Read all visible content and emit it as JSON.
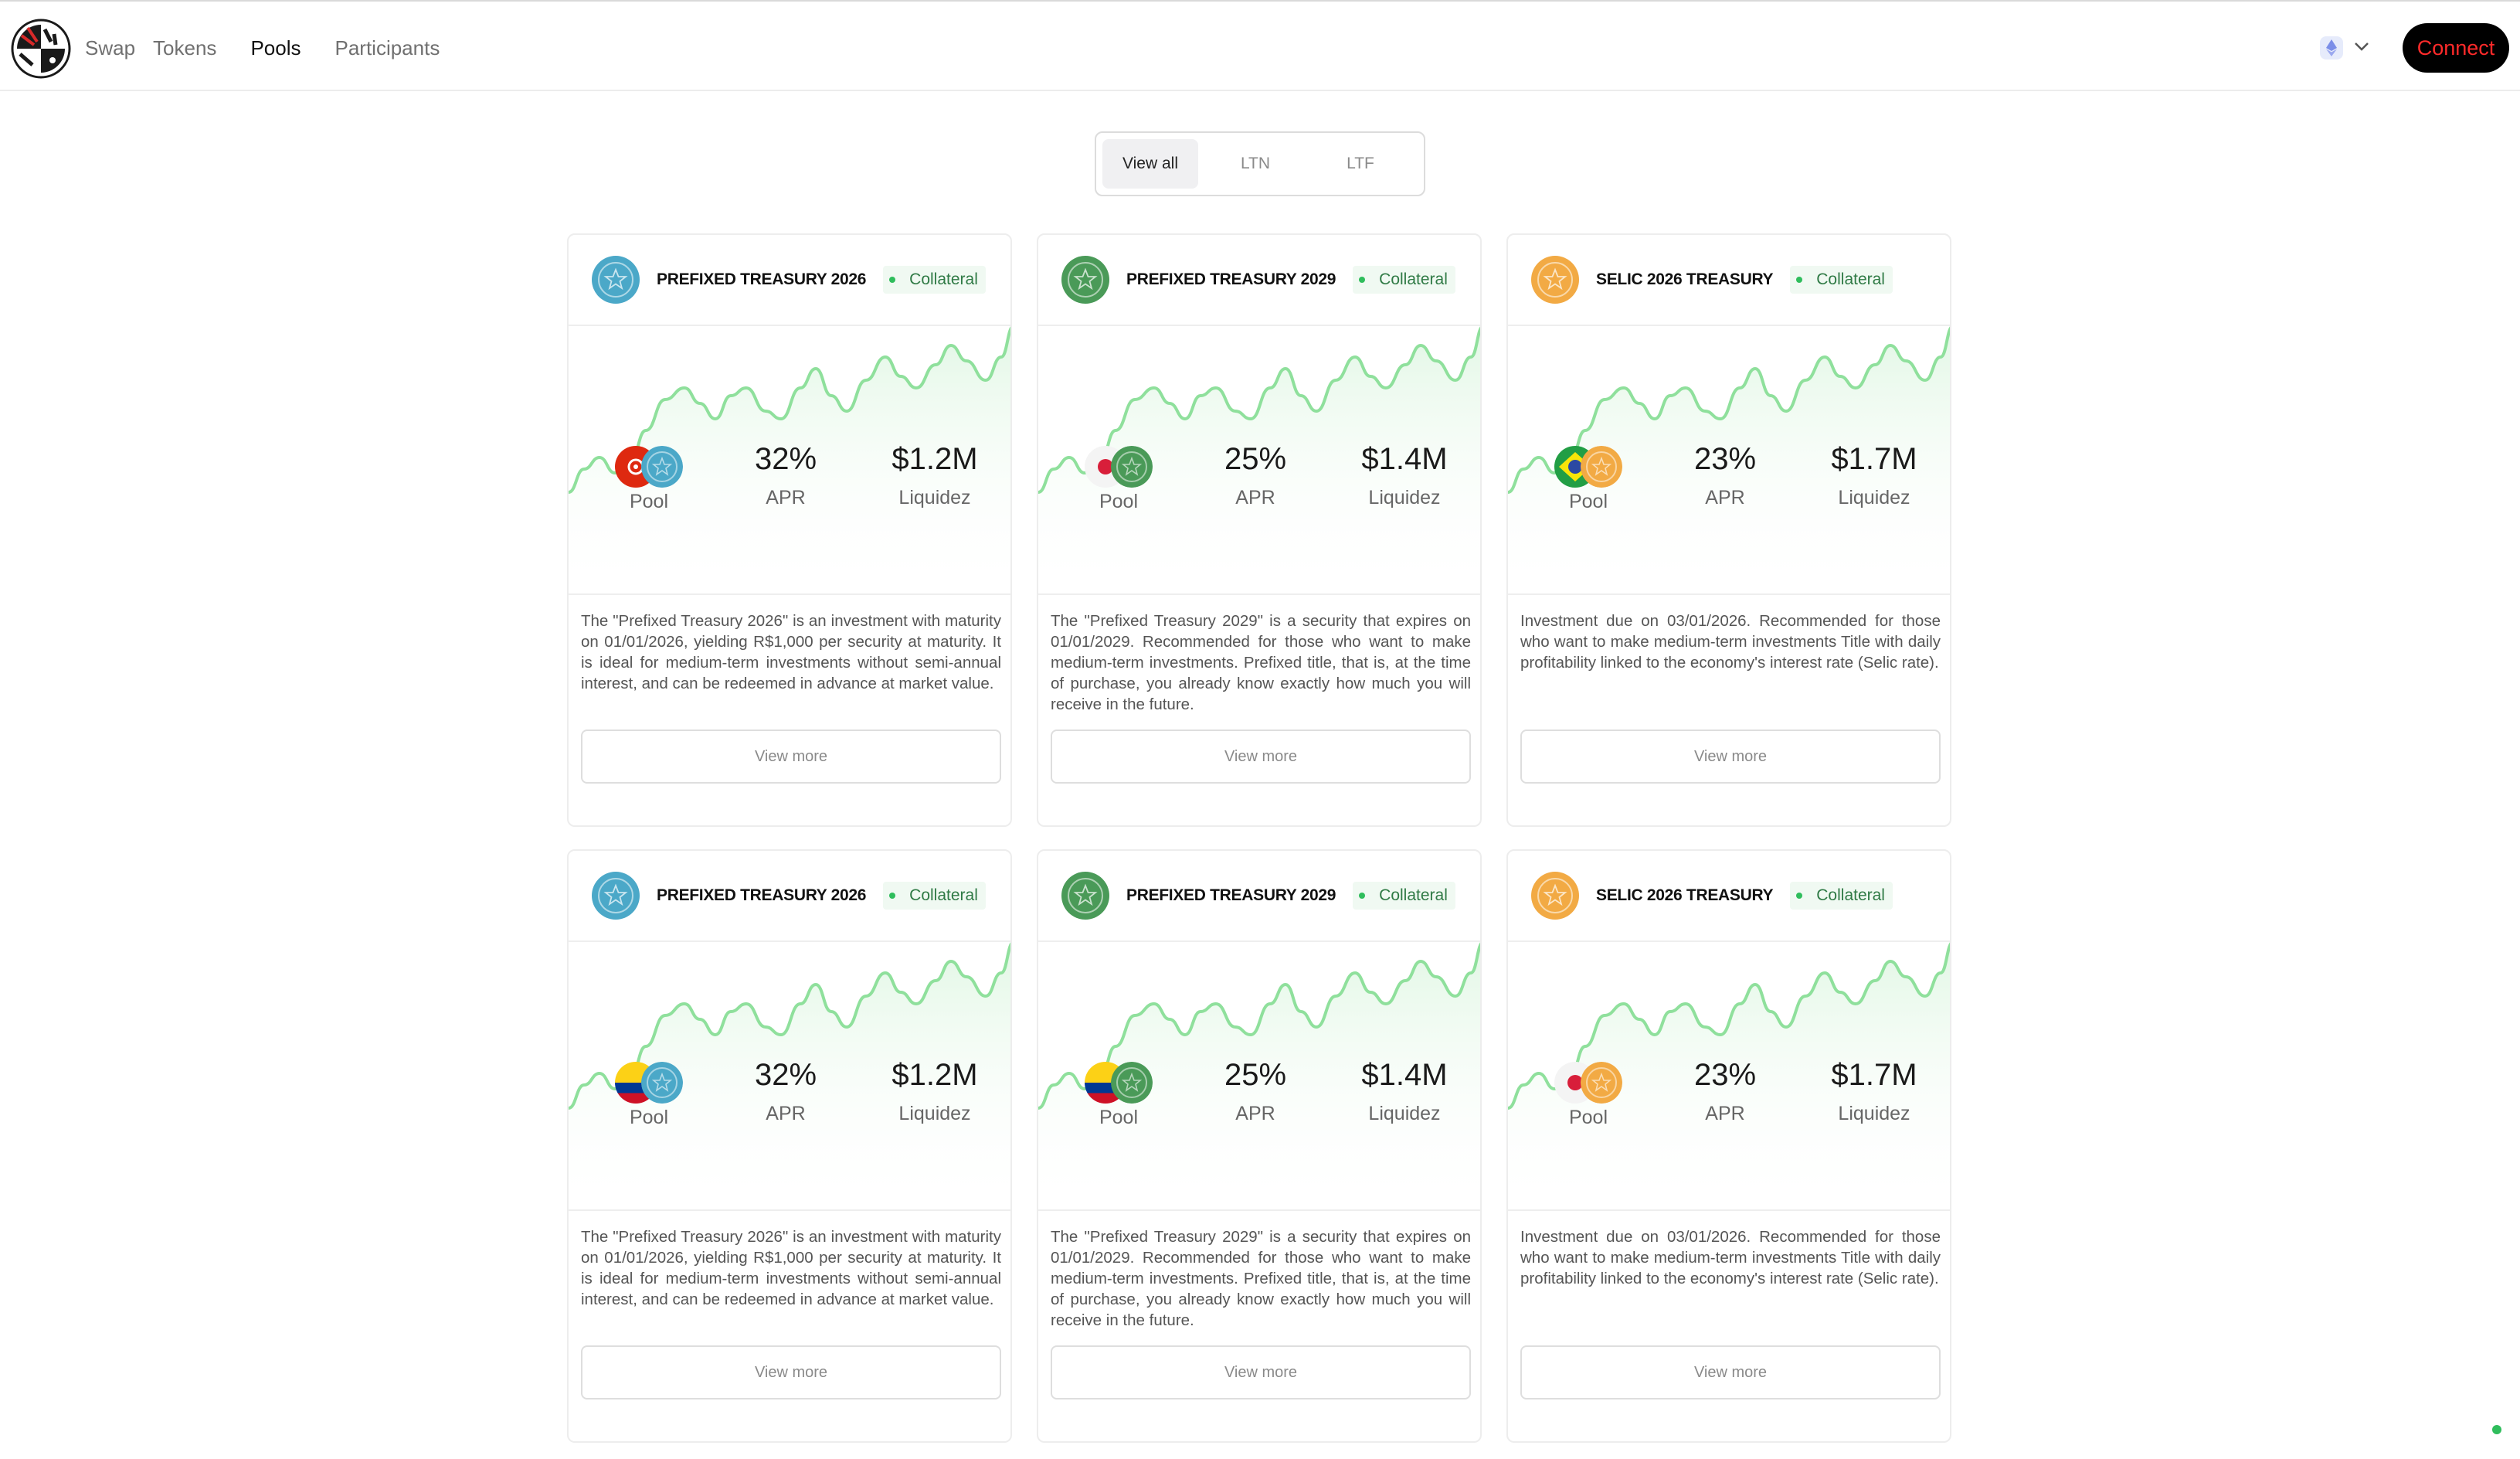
{
  "nav": {
    "items": [
      {
        "label": "Swap"
      },
      {
        "label": "Tokens"
      },
      {
        "label": "Pools"
      },
      {
        "label": "Participants"
      }
    ],
    "active": "Pools",
    "chain_icon": "ethereum-icon",
    "connect_label": "Connect"
  },
  "filters": {
    "tabs": [
      {
        "label": "View all"
      },
      {
        "label": "LTN"
      },
      {
        "label": "LTF"
      }
    ],
    "active": "View all"
  },
  "colors": {
    "accent_connect_text": "#ff2a2a",
    "chart_line": "#8fe09c",
    "collateral_green": "#2f7a45"
  },
  "cards": [
    {
      "title": "PREFIXED TREASURY 2026",
      "badge": "Collateral",
      "coin_color": "#4ba8c8",
      "pool_label": "Pool",
      "pool_icons": [
        "hong-kong-flag-icon",
        "treasury-2026-icon"
      ],
      "apr": "32%",
      "apr_label": "APR",
      "liquidity": "$1.2M",
      "liquidity_label": "Liquidez",
      "description": "The \"Prefixed Treasury 2026\" is an investment with maturity on 01/01/2026, yielding R$1,000 per security at maturity. It is ideal for medium-term investments without semi-annual interest, and can be redeemed in advance at market value.",
      "button": "View more"
    },
    {
      "title": "PREFIXED TREASURY 2029",
      "badge": "Collateral",
      "coin_color": "#4a9a58",
      "pool_label": "Pool",
      "pool_icons": [
        "japan-flag-icon",
        "treasury-2029-icon"
      ],
      "apr": "25%",
      "apr_label": "APR",
      "liquidity": "$1.4M",
      "liquidity_label": "Liquidez",
      "description": "The \"Prefixed Treasury 2029\" is a security that expires on 01/01/2029. Recommended for those who want to make medium-term investments. Prefixed title, that is, at the time of purchase, you already know exactly how much you will receive in the future.",
      "button": "View more"
    },
    {
      "title": "SELIC 2026 TREASURY",
      "badge": "Collateral",
      "coin_color": "#f2aa44",
      "pool_label": "Pool",
      "pool_icons": [
        "brazil-flag-icon",
        "selic-2026-icon"
      ],
      "apr": "23%",
      "apr_label": "APR",
      "liquidity": "$1.7M",
      "liquidity_label": "Liquidez",
      "description": "Investment due on 03/01/2026. Recommended for those who want to make medium-term investments Title with daily profitability linked to the economy's interest rate (Selic rate).",
      "button": "View more"
    },
    {
      "title": "PREFIXED TREASURY 2026",
      "badge": "Collateral",
      "coin_color": "#4ba8c8",
      "pool_label": "Pool",
      "pool_icons": [
        "colombia-flag-icon",
        "treasury-2026-icon"
      ],
      "apr": "32%",
      "apr_label": "APR",
      "liquidity": "$1.2M",
      "liquidity_label": "Liquidez",
      "description": "The \"Prefixed Treasury 2026\" is an investment with maturity on 01/01/2026, yielding R$1,000 per security at maturity. It is ideal for medium-term investments without semi-annual interest, and can be redeemed in advance at market value.",
      "button": "View more"
    },
    {
      "title": "PREFIXED TREASURY 2029",
      "badge": "Collateral",
      "coin_color": "#4a9a58",
      "pool_label": "Pool",
      "pool_icons": [
        "colombia-flag-icon",
        "treasury-2029-icon"
      ],
      "apr": "25%",
      "apr_label": "APR",
      "liquidity": "$1.4M",
      "liquidity_label": "Liquidez",
      "description": "The \"Prefixed Treasury 2029\" is a security that expires on 01/01/2029. Recommended for those who want to make medium-term investments. Prefixed title, that is, at the time of purchase, you already know exactly how much you will receive in the future.",
      "button": "View more"
    },
    {
      "title": "SELIC 2026 TREASURY",
      "badge": "Collateral",
      "coin_color": "#f2aa44",
      "pool_label": "Pool",
      "pool_icons": [
        "japan-flag-icon",
        "selic-2026-icon"
      ],
      "apr": "23%",
      "apr_label": "APR",
      "liquidity": "$1.7M",
      "liquidity_label": "Liquidez",
      "description": "Investment due on 03/01/2026. Recommended for those who want to make medium-term investments Title with daily profitability linked to the economy's interest rate (Selic rate).",
      "button": "View more"
    }
  ]
}
